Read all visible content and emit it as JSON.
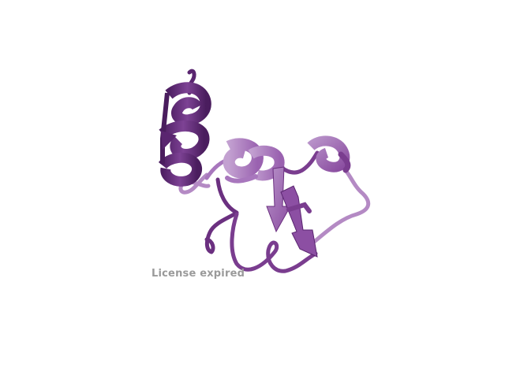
{
  "viewer": {
    "watermark_text": "License expired",
    "background_color": "#ffffff",
    "watermark_color": "#9a9a9a"
  },
  "structure": {
    "representation": "cartoon",
    "colors": {
      "helix_dark": "#5a2570",
      "helix_mid": "#7a3d8f",
      "sheet_light": "#a877bd",
      "sheet_mid": "#8c4fa3",
      "coil_light": "#b48ac4",
      "coil_dark": "#6b3080"
    },
    "elements": [
      "n-terminal-helix",
      "central-helix",
      "beta-hairpin",
      "right-loop",
      "lower-loops"
    ]
  }
}
